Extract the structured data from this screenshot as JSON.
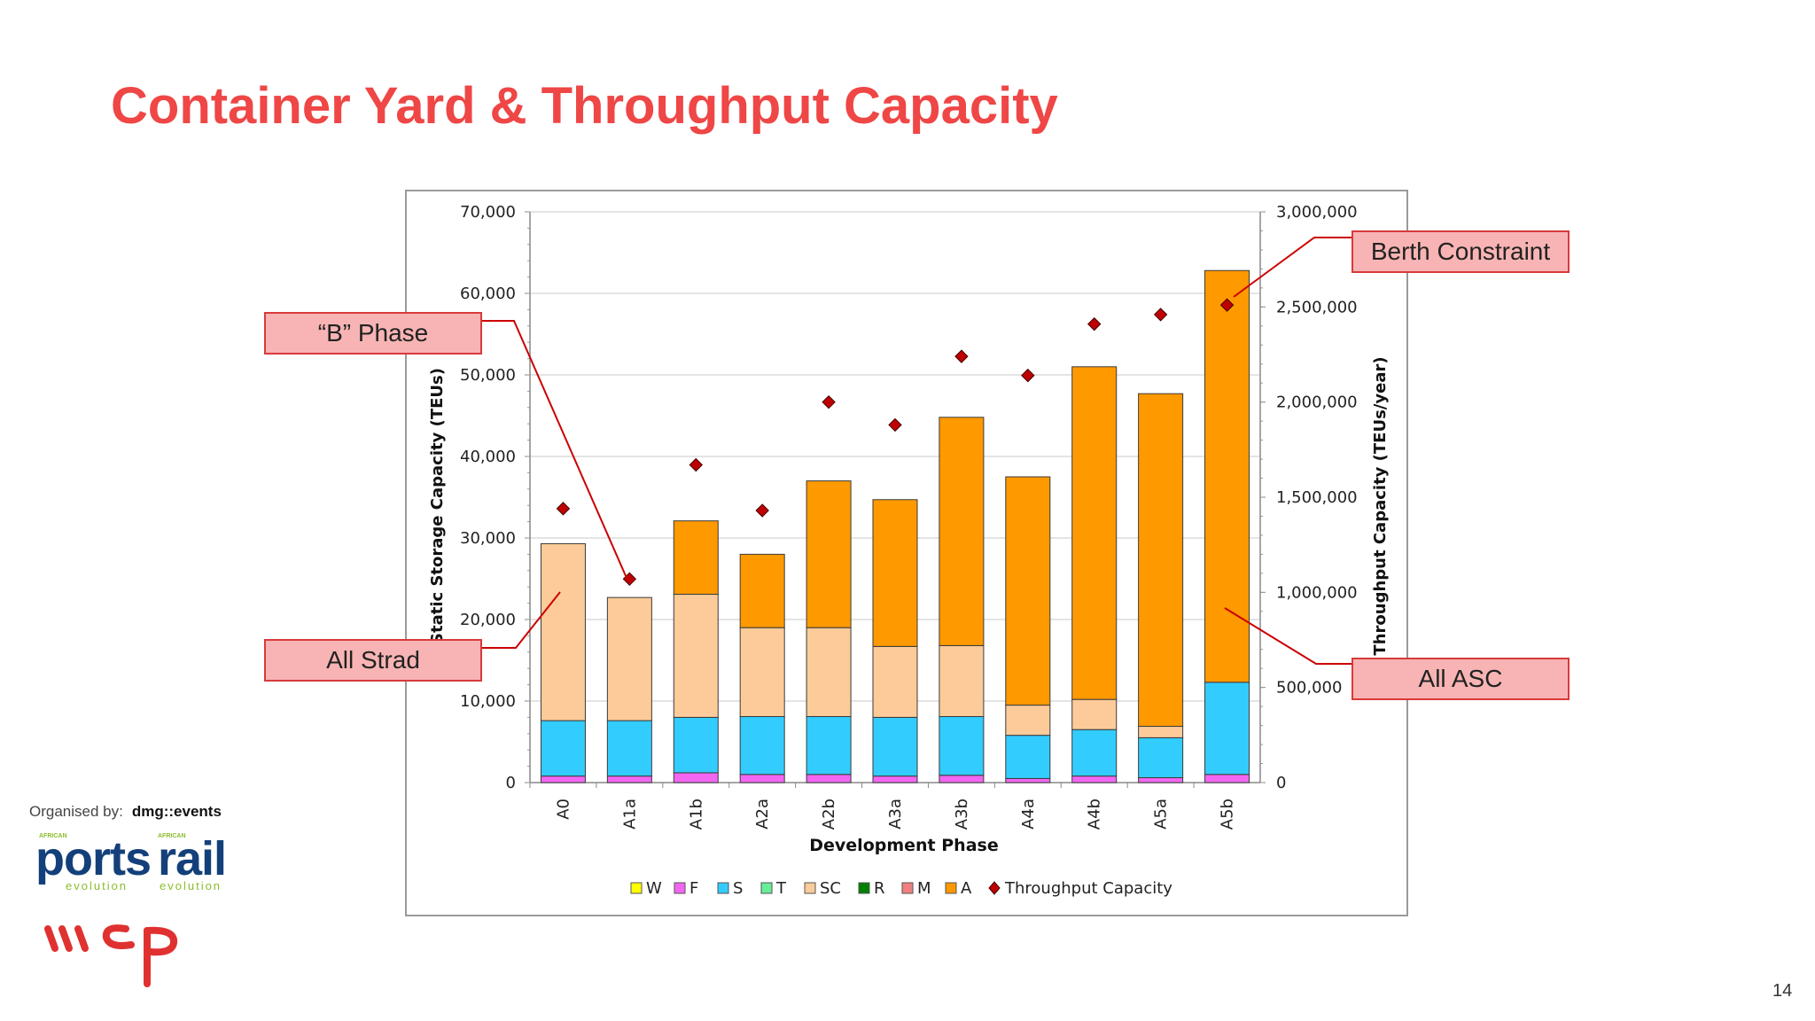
{
  "slide": {
    "title": "Container Yard & Throughput Capacity",
    "page_number": "14",
    "organised_by_label": "Organised by:",
    "organiser_brand": "dmg::events",
    "logo_ports_word": "ports",
    "logo_rail_word": "rail",
    "logo_sub_left": "evolution",
    "logo_sub_right": "evolution",
    "logo_tiny_left": "AFRICAN",
    "logo_tiny_right": "AFRICAN",
    "wsp_logo": "wsp-logo",
    "title_color": "#ef4646"
  },
  "callouts": {
    "b_phase": "“B” Phase",
    "all_strad": "All Strad",
    "berth_constraint": "Berth Constraint",
    "all_asc": "All ASC"
  },
  "chart_data": {
    "type": "bar",
    "stacked": true,
    "categories": [
      "A0",
      "A1a",
      "A1b",
      "A2a",
      "A2b",
      "A3a",
      "A3b",
      "A4a",
      "A4b",
      "A5a",
      "A5b"
    ],
    "xlabel": "Development Phase",
    "ylabel": "Static Storage Capacity (TEUs)",
    "y2label": "Throughput Capacity (TEUs/year)",
    "ylim": [
      0,
      70000
    ],
    "y2lim": [
      0,
      3000000
    ],
    "yticks": [
      "0",
      "10,000",
      "20,000",
      "30,000",
      "40,000",
      "50,000",
      "60,000",
      "70,000"
    ],
    "y2ticks": [
      "0",
      "500,000",
      "1,000,000",
      "1,500,000",
      "2,000,000",
      "2,500,000",
      "3,000,000"
    ],
    "grid": true,
    "legend_position": "bottom",
    "series": [
      {
        "name": "W",
        "color": "#ffff00",
        "values": [
          0,
          0,
          0,
          0,
          0,
          0,
          0,
          0,
          0,
          0,
          0
        ]
      },
      {
        "name": "F",
        "color": "#f266f2",
        "values": [
          800,
          800,
          1200,
          1000,
          1000,
          800,
          900,
          500,
          800,
          600,
          1000
        ]
      },
      {
        "name": "S",
        "color": "#33ccff",
        "values": [
          6800,
          6800,
          6800,
          7100,
          7100,
          7200,
          7200,
          5300,
          5700,
          4900,
          11300
        ]
      },
      {
        "name": "T",
        "color": "#66ee99",
        "values": [
          0,
          0,
          0,
          0,
          0,
          0,
          0,
          0,
          0,
          0,
          0
        ]
      },
      {
        "name": "SC",
        "color": "#fccb99",
        "values": [
          21700,
          15100,
          15100,
          10900,
          10900,
          8700,
          8700,
          3700,
          3700,
          1400,
          0
        ]
      },
      {
        "name": "R",
        "color": "#008000",
        "values": [
          0,
          0,
          0,
          0,
          0,
          0,
          0,
          0,
          0,
          0,
          0
        ]
      },
      {
        "name": "M",
        "color": "#f08080",
        "values": [
          0,
          0,
          0,
          0,
          0,
          0,
          0,
          0,
          0,
          0,
          0
        ]
      },
      {
        "name": "A",
        "color": "#ff9900",
        "values": [
          0,
          0,
          9000,
          9000,
          18000,
          18000,
          28000,
          28000,
          40800,
          40800,
          50500
        ]
      }
    ],
    "line_series": {
      "name": "Throughput Capacity",
      "axis": "secondary",
      "marker": "diamond",
      "color": "#c00000",
      "values": [
        1440000,
        1070000,
        1670000,
        1430000,
        2000000,
        1880000,
        2240000,
        2140000,
        2410000,
        2460000,
        2510000
      ]
    }
  }
}
